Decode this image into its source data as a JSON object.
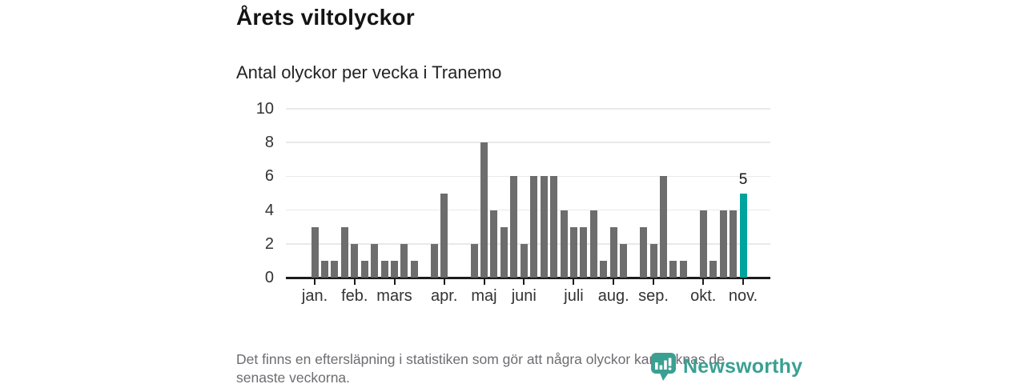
{
  "header": {
    "title": "Årets viltolyckor",
    "subtitle": "Antal olyckor per vecka i Tranemo"
  },
  "chart_data": {
    "type": "bar",
    "title": "Årets viltolyckor",
    "subtitle": "Antal olyckor per vecka i Tranemo",
    "ylabel": "",
    "xlabel": "",
    "ylim": [
      0,
      10
    ],
    "y_ticks": [
      0,
      2,
      4,
      6,
      8,
      10
    ],
    "grid": "horizontal",
    "values": [
      3,
      1,
      1,
      3,
      2,
      1,
      2,
      1,
      1,
      2,
      1,
      0,
      2,
      5,
      0,
      0,
      2,
      8,
      4,
      3,
      6,
      2,
      6,
      6,
      6,
      4,
      3,
      3,
      4,
      1,
      3,
      2,
      0,
      3,
      2,
      6,
      1,
      1,
      0,
      4,
      1,
      4,
      4,
      5
    ],
    "highlight_index": 43,
    "highlight_label": "5",
    "month_ticks": [
      {
        "label": "jan.",
        "index": 0
      },
      {
        "label": "feb.",
        "index": 4
      },
      {
        "label": "mars",
        "index": 8
      },
      {
        "label": "apr.",
        "index": 13
      },
      {
        "label": "maj",
        "index": 17
      },
      {
        "label": "juni",
        "index": 21
      },
      {
        "label": "juli",
        "index": 26
      },
      {
        "label": "aug.",
        "index": 30
      },
      {
        "label": "sep.",
        "index": 34
      },
      {
        "label": "okt.",
        "index": 39
      },
      {
        "label": "nov.",
        "index": 43
      }
    ],
    "colors": {
      "bar": "#6d6d6d",
      "highlight": "#00a49d",
      "grid": "#e9e9e9",
      "axis": "#1c1c1c"
    }
  },
  "footer": {
    "note": "Det finns en eftersläpning i statistiken som gör att några olyckor kan saknas de senaste veckorna.",
    "note_lines": [
      "Det finns en eftersläpning i statistiken som gör att några olyckor kan saknas de",
      "senaste veckorna."
    ],
    "logo_text": "Newsworthy",
    "logo_color": "#3aa092"
  }
}
